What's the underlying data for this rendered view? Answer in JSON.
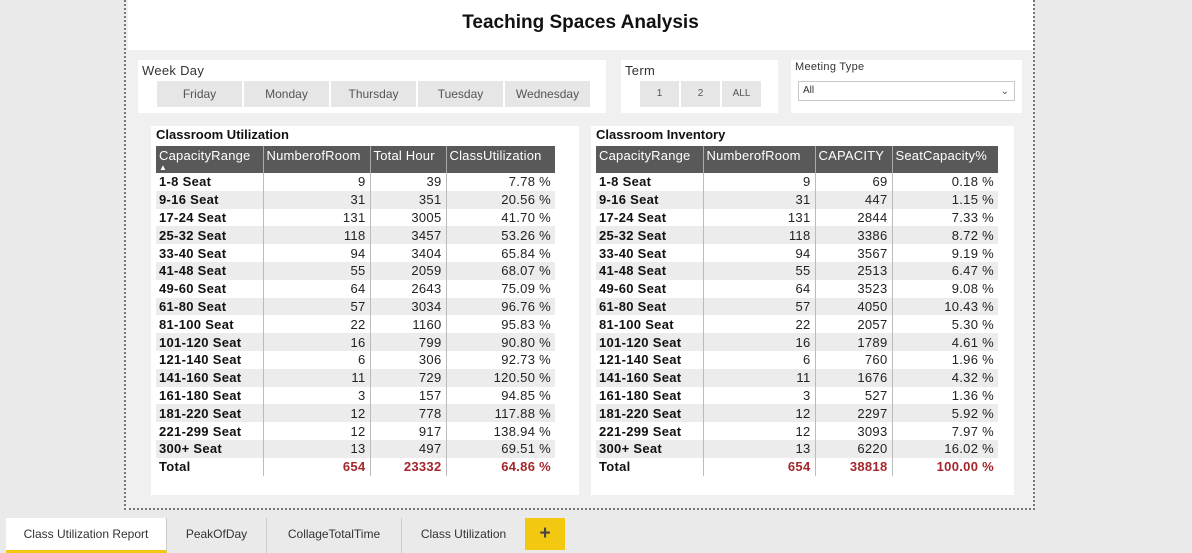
{
  "report": {
    "title": "Teaching Spaces Analysis"
  },
  "weekday_slicer": {
    "header": "Week Day",
    "options": [
      "Friday",
      "Monday",
      "Thursday",
      "Tuesday",
      "Wednesday"
    ]
  },
  "term_slicer": {
    "header": "Term",
    "options": [
      "1",
      "2",
      "ALL"
    ]
  },
  "meeting_slicer": {
    "header": "Meeting Type",
    "selected": "All"
  },
  "utilization": {
    "title": "Classroom Utilization",
    "columns": [
      "CapacityRange",
      "NumberofRoom",
      "Total Hour",
      "ClassUtilization"
    ],
    "rows": [
      [
        "1-8 Seat",
        "9",
        "39",
        "7.78 %"
      ],
      [
        "9-16 Seat",
        "31",
        "351",
        "20.56 %"
      ],
      [
        "17-24 Seat",
        "131",
        "3005",
        "41.70 %"
      ],
      [
        "25-32 Seat",
        "118",
        "3457",
        "53.26 %"
      ],
      [
        "33-40 Seat",
        "94",
        "3404",
        "65.84 %"
      ],
      [
        "41-48 Seat",
        "55",
        "2059",
        "68.07 %"
      ],
      [
        "49-60 Seat",
        "64",
        "2643",
        "75.09 %"
      ],
      [
        "61-80 Seat",
        "57",
        "3034",
        "96.76 %"
      ],
      [
        "81-100 Seat",
        "22",
        "1160",
        "95.83 %"
      ],
      [
        "101-120 Seat",
        "16",
        "799",
        "90.80 %"
      ],
      [
        "121-140 Seat",
        "6",
        "306",
        "92.73 %"
      ],
      [
        "141-160 Seat",
        "11",
        "729",
        "120.50 %"
      ],
      [
        "161-180 Seat",
        "3",
        "157",
        "94.85 %"
      ],
      [
        "181-220 Seat",
        "12",
        "778",
        "117.88 %"
      ],
      [
        "221-299 Seat",
        "12",
        "917",
        "138.94 %"
      ],
      [
        "300+ Seat",
        "13",
        "497",
        "69.51 %"
      ]
    ],
    "total": [
      "Total",
      "654",
      "23332",
      "64.86 %"
    ]
  },
  "inventory": {
    "title": "Classroom Inventory",
    "columns": [
      "CapacityRange",
      "NumberofRoom",
      "CAPACITY",
      "SeatCapacity%"
    ],
    "rows": [
      [
        "1-8 Seat",
        "9",
        "69",
        "0.18 %"
      ],
      [
        "9-16 Seat",
        "31",
        "447",
        "1.15 %"
      ],
      [
        "17-24 Seat",
        "131",
        "2844",
        "7.33 %"
      ],
      [
        "25-32 Seat",
        "118",
        "3386",
        "8.72 %"
      ],
      [
        "33-40 Seat",
        "94",
        "3567",
        "9.19 %"
      ],
      [
        "41-48 Seat",
        "55",
        "2513",
        "6.47 %"
      ],
      [
        "49-60 Seat",
        "64",
        "3523",
        "9.08 %"
      ],
      [
        "61-80 Seat",
        "57",
        "4050",
        "10.43 %"
      ],
      [
        "81-100 Seat",
        "22",
        "2057",
        "5.30 %"
      ],
      [
        "101-120 Seat",
        "16",
        "1789",
        "4.61 %"
      ],
      [
        "121-140 Seat",
        "6",
        "760",
        "1.96 %"
      ],
      [
        "141-160 Seat",
        "11",
        "1676",
        "4.32 %"
      ],
      [
        "161-180 Seat",
        "3",
        "527",
        "1.36 %"
      ],
      [
        "181-220 Seat",
        "12",
        "2297",
        "5.92 %"
      ],
      [
        "221-299 Seat",
        "12",
        "3093",
        "7.97 %"
      ],
      [
        "300+ Seat",
        "13",
        "6220",
        "16.02 %"
      ]
    ],
    "total": [
      "Total",
      "654",
      "38818",
      "100.00 %"
    ]
  },
  "tabs": {
    "active": "Class Utilization Report",
    "items": [
      "Class Utilization Report",
      "PeakOfDay",
      "CollageTotalTime",
      "Class Utilization"
    ],
    "add_label": "+"
  },
  "colors": {
    "header_bg": "#595959",
    "total_red": "#a4262c",
    "accent": "#f2c811"
  }
}
